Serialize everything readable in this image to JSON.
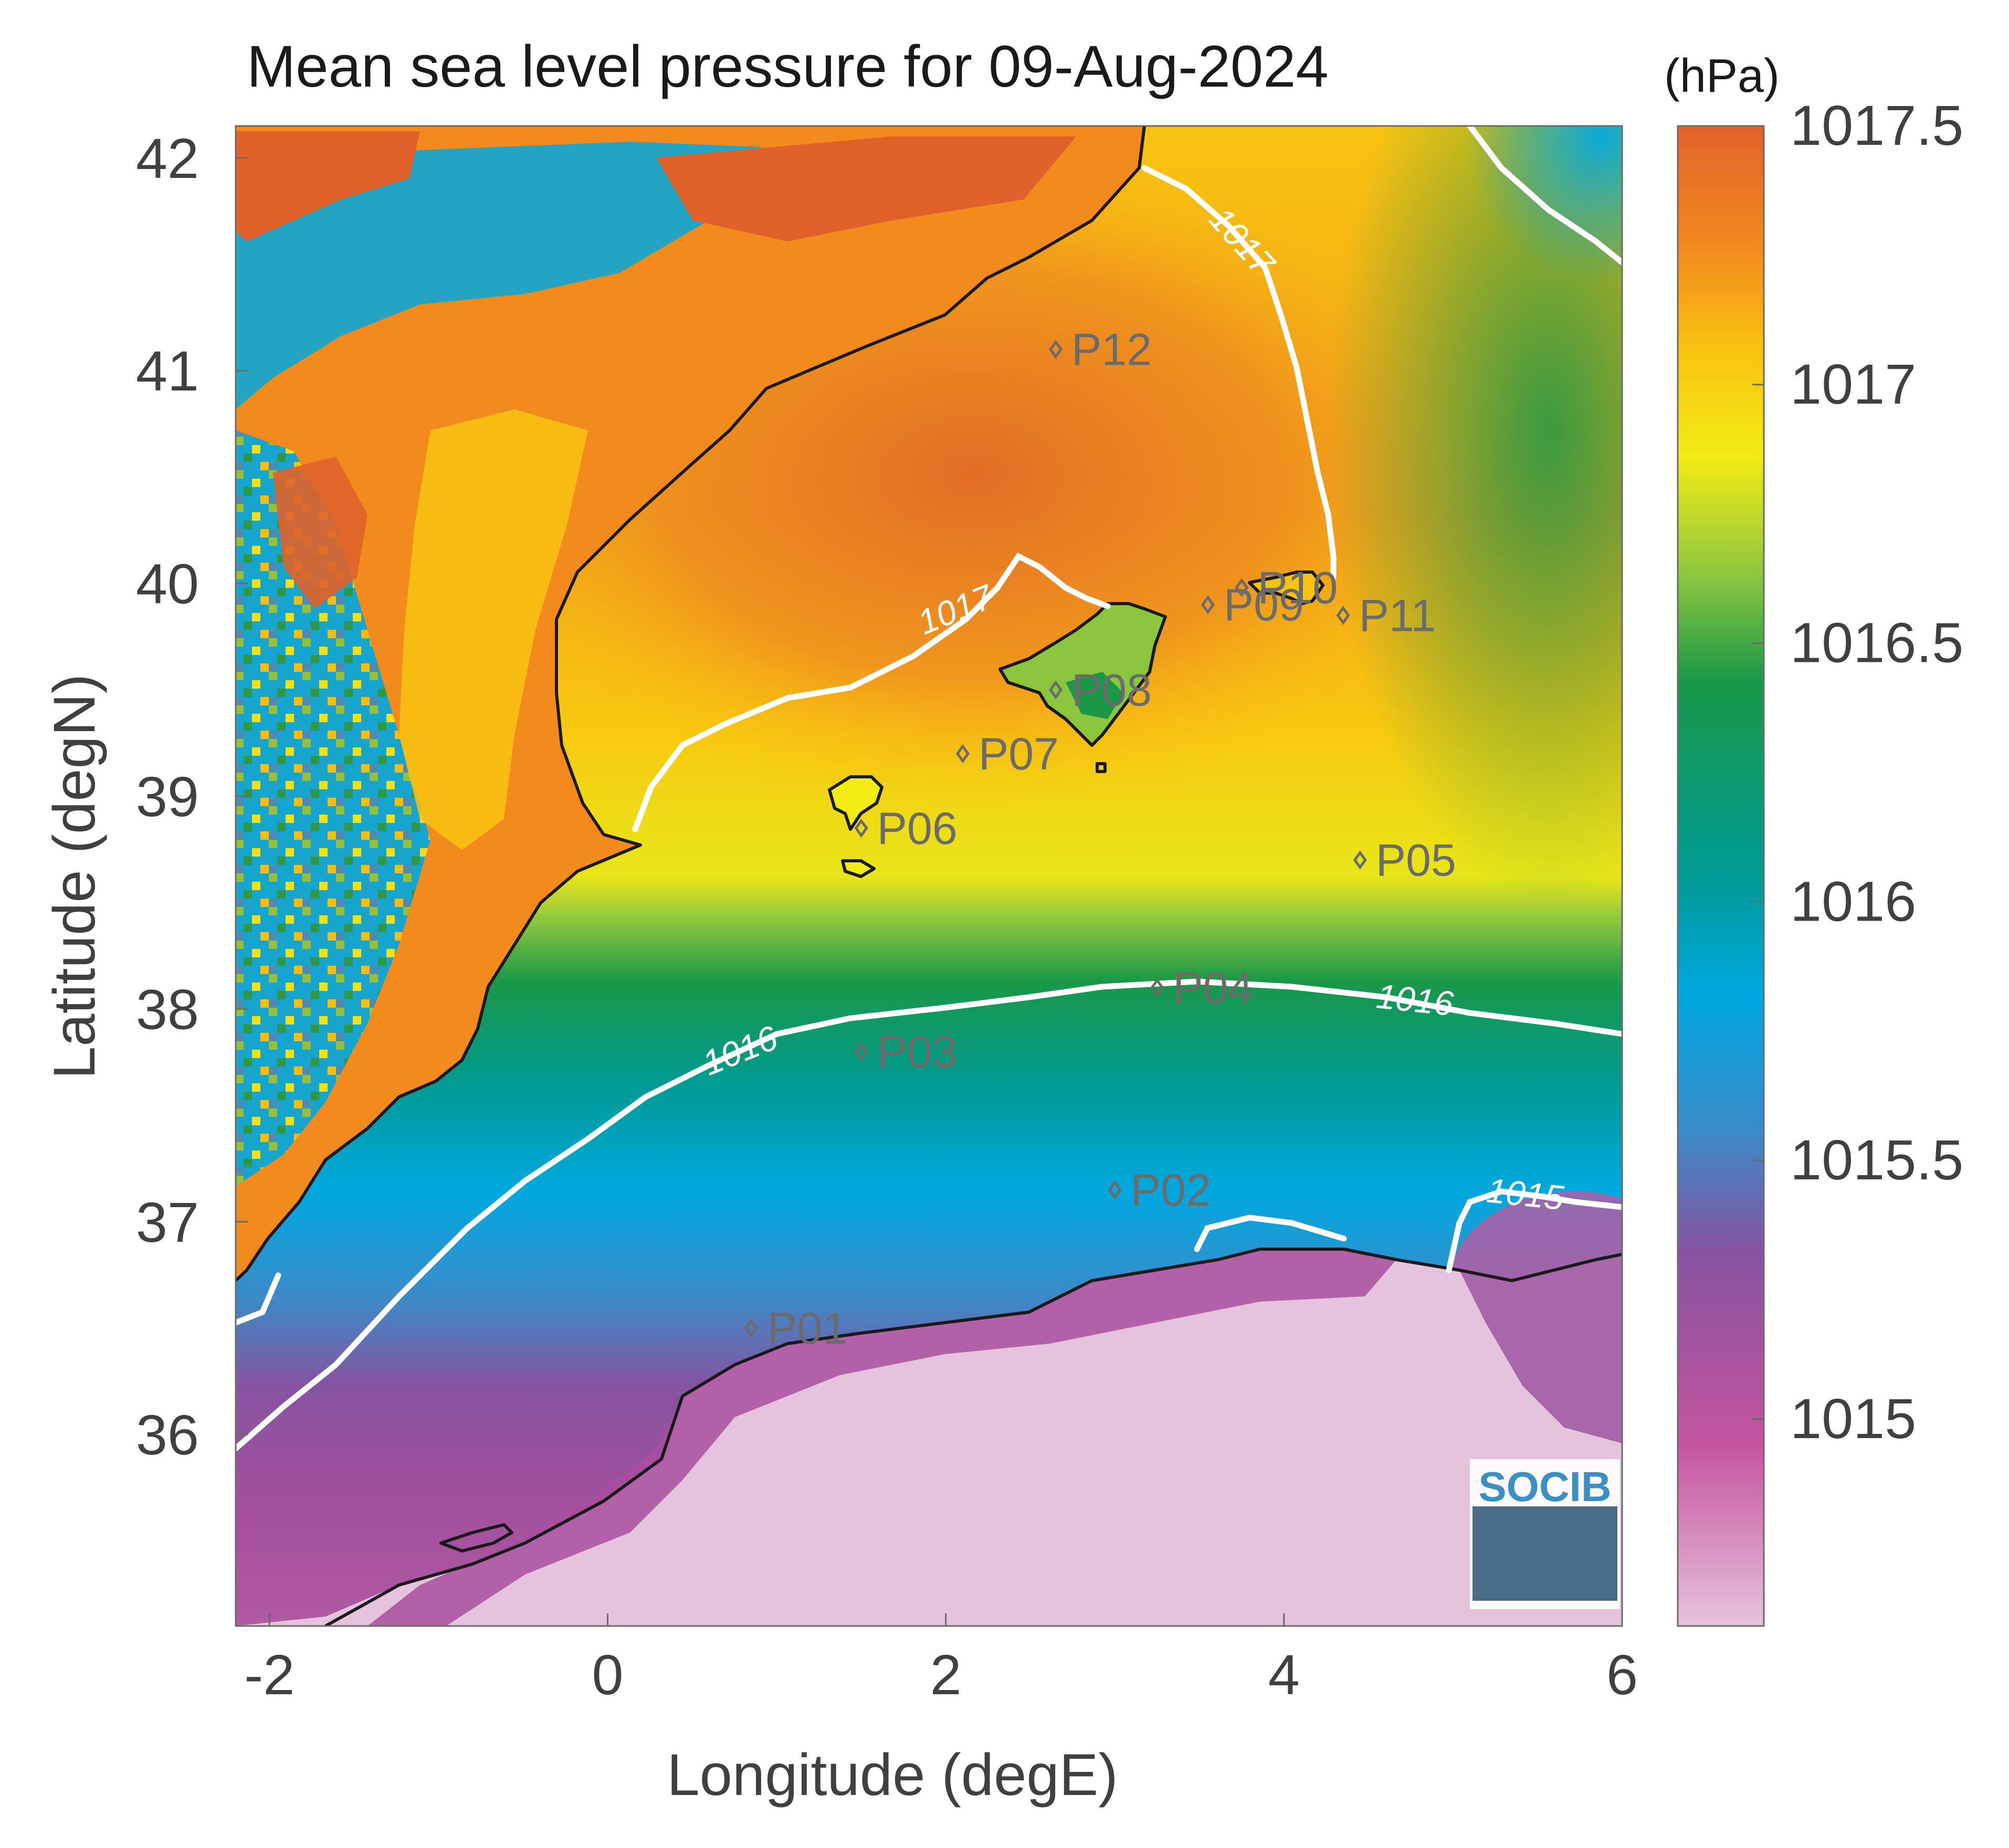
{
  "title": "Mean sea level pressure for 09-Aug-2024",
  "unit_label": "(hPa)",
  "xlabel": "Longitude (degE)",
  "ylabel": "Latitude (degN)",
  "logo_text": "SOCIB",
  "colorbar": {
    "min": 1014.6,
    "max": 1017.5,
    "ticks": [
      {
        "value": 1015,
        "label": "1015"
      },
      {
        "value": 1015.5,
        "label": "1015.5"
      },
      {
        "value": 1016,
        "label": "1016"
      },
      {
        "value": 1016.5,
        "label": "1016.5"
      },
      {
        "value": 1017,
        "label": "1017"
      },
      {
        "value": 1017.5,
        "label": "1017.5"
      }
    ],
    "colors": [
      "#e6c3dc",
      "#c4559f",
      "#8653a0",
      "#3b8bc8",
      "#00a8e0",
      "#009b94",
      "#1a9848",
      "#8cc63f",
      "#f2ec14",
      "#f8c310",
      "#f28a1e",
      "#e0622a"
    ]
  },
  "chart_data": {
    "type": "heatmap",
    "xlim": [
      -2.2,
      6
    ],
    "ylim": [
      35.1,
      42.15
    ],
    "xticks": [
      {
        "value": -2,
        "label": "-2"
      },
      {
        "value": 0,
        "label": "0"
      },
      {
        "value": 2,
        "label": "2"
      },
      {
        "value": 4,
        "label": "4"
      },
      {
        "value": 6,
        "label": "6"
      }
    ],
    "yticks": [
      {
        "value": 36,
        "label": "36"
      },
      {
        "value": 37,
        "label": "37"
      },
      {
        "value": 38,
        "label": "38"
      },
      {
        "value": 39,
        "label": "39"
      },
      {
        "value": 40,
        "label": "40"
      },
      {
        "value": 41,
        "label": "41"
      },
      {
        "value": 42,
        "label": "42"
      }
    ],
    "points": [
      {
        "name": "P01",
        "lon": 0.85,
        "lat": 36.5
      },
      {
        "name": "P02",
        "lon": 3.0,
        "lat": 37.15
      },
      {
        "name": "P03",
        "lon": 1.5,
        "lat": 37.8
      },
      {
        "name": "P04",
        "lon": 3.25,
        "lat": 38.1
      },
      {
        "name": "P05",
        "lon": 4.45,
        "lat": 38.7
      },
      {
        "name": "P06",
        "lon": 1.5,
        "lat": 38.85
      },
      {
        "name": "P07",
        "lon": 2.1,
        "lat": 39.2
      },
      {
        "name": "P08",
        "lon": 2.65,
        "lat": 39.5
      },
      {
        "name": "P09",
        "lon": 3.55,
        "lat": 39.9
      },
      {
        "name": "P10",
        "lon": 3.75,
        "lat": 39.98
      },
      {
        "name": "P11",
        "lon": 4.35,
        "lat": 39.85
      },
      {
        "name": "P12",
        "lon": 2.65,
        "lat": 41.1
      }
    ],
    "contours": [
      {
        "level": 1015,
        "label": "1015"
      },
      {
        "level": 1016,
        "label": "1016"
      },
      {
        "level": 1017,
        "label": "1017"
      }
    ]
  }
}
